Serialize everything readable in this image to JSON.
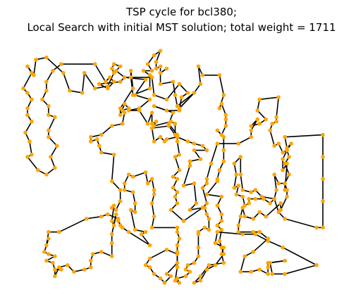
{
  "chart_data": {
    "type": "line",
    "title_lines": [
      "TSP cycle for bcl380;",
      "Local Search with initial MST solution; total weight = 1711"
    ],
    "xlabel": "",
    "ylabel": "",
    "axes_visible": false,
    "grid": false,
    "xlim": [
      0,
      152
    ],
    "ylim": [
      0,
      108
    ],
    "line_color": "#000000",
    "point_color": "#ffa500",
    "closed": true,
    "tour": [
      [
        19,
        100
      ],
      [
        35,
        100
      ],
      [
        40,
        92
      ],
      [
        42,
        94
      ],
      [
        44,
        92
      ],
      [
        41,
        89
      ],
      [
        37,
        91
      ],
      [
        47,
        92
      ],
      [
        49,
        94
      ],
      [
        62,
        94
      ],
      [
        63,
        86
      ],
      [
        69,
        84
      ],
      [
        75,
        91
      ],
      [
        79,
        87
      ],
      [
        76,
        85
      ],
      [
        75,
        79
      ],
      [
        69,
        79
      ],
      [
        63,
        81
      ],
      [
        72,
        78
      ],
      [
        70,
        73
      ],
      [
        74,
        68
      ],
      [
        74,
        65
      ],
      [
        75,
        59
      ],
      [
        73,
        58
      ],
      [
        75,
        52
      ],
      [
        72,
        49
      ],
      [
        74,
        48
      ],
      [
        72,
        44
      ],
      [
        74,
        42
      ],
      [
        73,
        40
      ],
      [
        74,
        37
      ],
      [
        71,
        34
      ],
      [
        77,
        29
      ],
      [
        86,
        35
      ],
      [
        88,
        37
      ],
      [
        86,
        44
      ],
      [
        88,
        46
      ],
      [
        88,
        48
      ],
      [
        90,
        55
      ],
      [
        93,
        64
      ],
      [
        103,
        64
      ],
      [
        109,
        67
      ],
      [
        109,
        70
      ],
      [
        112,
        75
      ],
      [
        109,
        72
      ],
      [
        113,
        73
      ],
      [
        116,
        75
      ],
      [
        112,
        79
      ],
      [
        113,
        84
      ],
      [
        122,
        85
      ],
      [
        121,
        76
      ],
      [
        121,
        74
      ],
      [
        119,
        73
      ],
      [
        118,
        70
      ],
      [
        120,
        63
      ],
      [
        122,
        64
      ],
      [
        124,
        60
      ],
      [
        126,
        61
      ],
      [
        124,
        57
      ],
      [
        124,
        52
      ],
      [
        126,
        55
      ],
      [
        125,
        43
      ],
      [
        125,
        46
      ],
      [
        122,
        46
      ],
      [
        120,
        50
      ],
      [
        121,
        43
      ],
      [
        120,
        39
      ],
      [
        114,
        40
      ],
      [
        111,
        43
      ],
      [
        109,
        42
      ],
      [
        105,
        43
      ],
      [
        104,
        50
      ],
      [
        104,
        58
      ],
      [
        101,
        55
      ],
      [
        102,
        50
      ],
      [
        101,
        44
      ],
      [
        103,
        45
      ],
      [
        102,
        41
      ],
      [
        105,
        40
      ],
      [
        106,
        36
      ],
      [
        108,
        37
      ],
      [
        108,
        39
      ],
      [
        111,
        39
      ],
      [
        115,
        39
      ],
      [
        118,
        37
      ],
      [
        120,
        39
      ],
      [
        122,
        33
      ],
      [
        125,
        30
      ],
      [
        140,
        26
      ],
      [
        143,
        26
      ],
      [
        143,
        38
      ],
      [
        143,
        48
      ],
      [
        143,
        58
      ],
      [
        143,
        68
      ],
      [
        125,
        67
      ],
      [
        126,
        62
      ],
      [
        128,
        64
      ],
      [
        126,
        61
      ],
      [
        127,
        58
      ],
      [
        125,
        55
      ],
      [
        127,
        50
      ],
      [
        125,
        46
      ],
      [
        126,
        43
      ],
      [
        126,
        40
      ],
      [
        123,
        34
      ],
      [
        123,
        37
      ],
      [
        116,
        31
      ],
      [
        113,
        33
      ],
      [
        110,
        30
      ],
      [
        106,
        31
      ],
      [
        105,
        35
      ],
      [
        104,
        31
      ],
      [
        103,
        27
      ],
      [
        103,
        24
      ],
      [
        110,
        24
      ],
      [
        113,
        24
      ],
      [
        117,
        21
      ],
      [
        110,
        15
      ],
      [
        106,
        13
      ],
      [
        104,
        6
      ],
      [
        109,
        6
      ],
      [
        113,
        7
      ],
      [
        117,
        5
      ],
      [
        117,
        8
      ],
      [
        117,
        10
      ],
      [
        125,
        11
      ],
      [
        118,
        10
      ],
      [
        119,
        5
      ],
      [
        125,
        5
      ],
      [
        140,
        9
      ],
      [
        124,
        17
      ],
      [
        117,
        20
      ],
      [
        111,
        23
      ],
      [
        105,
        23
      ],
      [
        93,
        24
      ],
      [
        92,
        19
      ],
      [
        96,
        17
      ],
      [
        95,
        14
      ],
      [
        96,
        10
      ],
      [
        89,
        9
      ],
      [
        85,
        4
      ],
      [
        82,
        1
      ],
      [
        85,
        2
      ],
      [
        88,
        7
      ],
      [
        92,
        9
      ],
      [
        96,
        14
      ],
      [
        95,
        17
      ],
      [
        94,
        20
      ],
      [
        95,
        25
      ],
      [
        93,
        27
      ],
      [
        95,
        29
      ],
      [
        95,
        32
      ],
      [
        93,
        36
      ],
      [
        95,
        40
      ],
      [
        88,
        41
      ],
      [
        93,
        47
      ],
      [
        93,
        48
      ],
      [
        94,
        52
      ],
      [
        96,
        56
      ],
      [
        96,
        61
      ],
      [
        96,
        67
      ],
      [
        93,
        70
      ],
      [
        95,
        68
      ],
      [
        97,
        72
      ],
      [
        97,
        75
      ],
      [
        97,
        77
      ],
      [
        95,
        82
      ],
      [
        94,
        80
      ],
      [
        96,
        86
      ],
      [
        94,
        95
      ],
      [
        86,
        95
      ],
      [
        84,
        99
      ],
      [
        85,
        91
      ],
      [
        82,
        87
      ],
      [
        75,
        80
      ],
      [
        82,
        87
      ],
      [
        74,
        81
      ],
      [
        73,
        86
      ],
      [
        72,
        92
      ],
      [
        66,
        91
      ],
      [
        66,
        96
      ],
      [
        69,
        98
      ],
      [
        66,
        96
      ],
      [
        66,
        99
      ],
      [
        64,
        98
      ],
      [
        64,
        101
      ],
      [
        66,
        106
      ],
      [
        63,
        104
      ],
      [
        60,
        100
      ],
      [
        62,
        97
      ],
      [
        58,
        97
      ],
      [
        61,
        95
      ],
      [
        61,
        89
      ],
      [
        53,
        86
      ],
      [
        52,
        94
      ],
      [
        52,
        97
      ],
      [
        53,
        89
      ],
      [
        47,
        80
      ],
      [
        47,
        77
      ],
      [
        49,
        82
      ],
      [
        51,
        80
      ],
      [
        48,
        79
      ],
      [
        49,
        78
      ],
      [
        48,
        73
      ],
      [
        43,
        72
      ],
      [
        38,
        68
      ],
      [
        33,
        67
      ],
      [
        33,
        65
      ],
      [
        36,
        66
      ],
      [
        37,
        63
      ],
      [
        38,
        60
      ],
      [
        44,
        59
      ],
      [
        43,
        47
      ],
      [
        47,
        43
      ],
      [
        47,
        38
      ],
      [
        45,
        34
      ],
      [
        43,
        35
      ],
      [
        44,
        36
      ],
      [
        43,
        29
      ],
      [
        44,
        27
      ],
      [
        45,
        32
      ],
      [
        43,
        23
      ],
      [
        43,
        19
      ],
      [
        43,
        13
      ],
      [
        38,
        15
      ],
      [
        34,
        14
      ],
      [
        33,
        11
      ],
      [
        33,
        8
      ],
      [
        30,
        7
      ],
      [
        25,
        6
      ],
      [
        22,
        9
      ],
      [
        18,
        8
      ],
      [
        16,
        4
      ],
      [
        16,
        7
      ],
      [
        19,
        7
      ],
      [
        16,
        7
      ],
      [
        15,
        10
      ],
      [
        12,
        11
      ],
      [
        16,
        13
      ],
      [
        13,
        14
      ],
      [
        11,
        15
      ],
      [
        13,
        21
      ],
      [
        12,
        18
      ],
      [
        13,
        24
      ],
      [
        18,
        24
      ],
      [
        31,
        30
      ],
      [
        38,
        31
      ],
      [
        41,
        32
      ],
      [
        46,
        30
      ],
      [
        47,
        27
      ],
      [
        46,
        29
      ],
      [
        48,
        26
      ],
      [
        51,
        24
      ],
      [
        61,
        18
      ],
      [
        57,
        23
      ],
      [
        59,
        24
      ],
      [
        54,
        25
      ],
      [
        52,
        34
      ],
      [
        54,
        33
      ],
      [
        54,
        37
      ],
      [
        53,
        42
      ],
      [
        49,
        43
      ],
      [
        49,
        46
      ],
      [
        51,
        50
      ],
      [
        53,
        49
      ],
      [
        59,
        51
      ],
      [
        60,
        46
      ],
      [
        62,
        48
      ],
      [
        63,
        43
      ],
      [
        63,
        41
      ],
      [
        62,
        37
      ],
      [
        63,
        31
      ],
      [
        62,
        26
      ],
      [
        74,
        26
      ],
      [
        74,
        24
      ],
      [
        75,
        21
      ],
      [
        74,
        18
      ],
      [
        74,
        15
      ],
      [
        74,
        10
      ],
      [
        74,
        14
      ],
      [
        69,
        16
      ],
      [
        61,
        12
      ],
      [
        59,
        9
      ],
      [
        61,
        8
      ],
      [
        63,
        5
      ],
      [
        66,
        3
      ],
      [
        68,
        1
      ],
      [
        71,
        4
      ],
      [
        69,
        5
      ],
      [
        74,
        10
      ],
      [
        74,
        8
      ],
      [
        73,
        2
      ],
      [
        75,
        1
      ],
      [
        74,
        3
      ],
      [
        78,
        4
      ],
      [
        80,
        6
      ],
      [
        78,
        7
      ],
      [
        79,
        9
      ],
      [
        82,
        10
      ],
      [
        84,
        13
      ],
      [
        84,
        17
      ],
      [
        84,
        23
      ],
      [
        84,
        24
      ],
      [
        87,
        26
      ],
      [
        89,
        25
      ],
      [
        89,
        30
      ],
      [
        88,
        32
      ],
      [
        87,
        35
      ],
      [
        86,
        35
      ],
      [
        80,
        34
      ],
      [
        83,
        37
      ],
      [
        82,
        46
      ],
      [
        77,
        45
      ],
      [
        80,
        54
      ],
      [
        80,
        56
      ],
      [
        85,
        57
      ],
      [
        82,
        61
      ],
      [
        88,
        61
      ],
      [
        86,
        63
      ],
      [
        82,
        64
      ],
      [
        79,
        65
      ],
      [
        74,
        67
      ],
      [
        69,
        66
      ],
      [
        68,
        65
      ],
      [
        66,
        67
      ],
      [
        63,
        65
      ],
      [
        62,
        71
      ],
      [
        70,
        72
      ],
      [
        73,
        68
      ],
      [
        73,
        73
      ],
      [
        71,
        74
      ],
      [
        63,
        72
      ],
      [
        64,
        74
      ],
      [
        62,
        73
      ],
      [
        62,
        78
      ],
      [
        60,
        73
      ],
      [
        56,
        79
      ],
      [
        51,
        79
      ],
      [
        56,
        80
      ],
      [
        61,
        84
      ],
      [
        54,
        86
      ],
      [
        59,
        93
      ],
      [
        49,
        94
      ],
      [
        45,
        97
      ],
      [
        47,
        99
      ],
      [
        44,
        100
      ],
      [
        43,
        98
      ],
      [
        44,
        96
      ],
      [
        41,
        90
      ],
      [
        35,
        89
      ],
      [
        30,
        96
      ],
      [
        29,
        87
      ],
      [
        23,
        88
      ],
      [
        20,
        96
      ],
      [
        12,
        103
      ],
      [
        7,
        102
      ],
      [
        6,
        95
      ],
      [
        3,
        99
      ],
      [
        5,
        96
      ],
      [
        1,
        89
      ],
      [
        3,
        87
      ],
      [
        5,
        84
      ],
      [
        3,
        80
      ],
      [
        3,
        77
      ],
      [
        5,
        74
      ],
      [
        2,
        69
      ],
      [
        4,
        65
      ],
      [
        5,
        59
      ],
      [
        3,
        58
      ],
      [
        8,
        52
      ],
      [
        12,
        50
      ],
      [
        16,
        53
      ],
      [
        14,
        58
      ],
      [
        17,
        63
      ],
      [
        13,
        67
      ],
      [
        13,
        70
      ],
      [
        16,
        76
      ],
      [
        13,
        77
      ],
      [
        13,
        81
      ],
      [
        10,
        84
      ],
      [
        12,
        88
      ],
      [
        12,
        92
      ],
      [
        15,
        97
      ],
      [
        19,
        100
      ]
    ]
  }
}
